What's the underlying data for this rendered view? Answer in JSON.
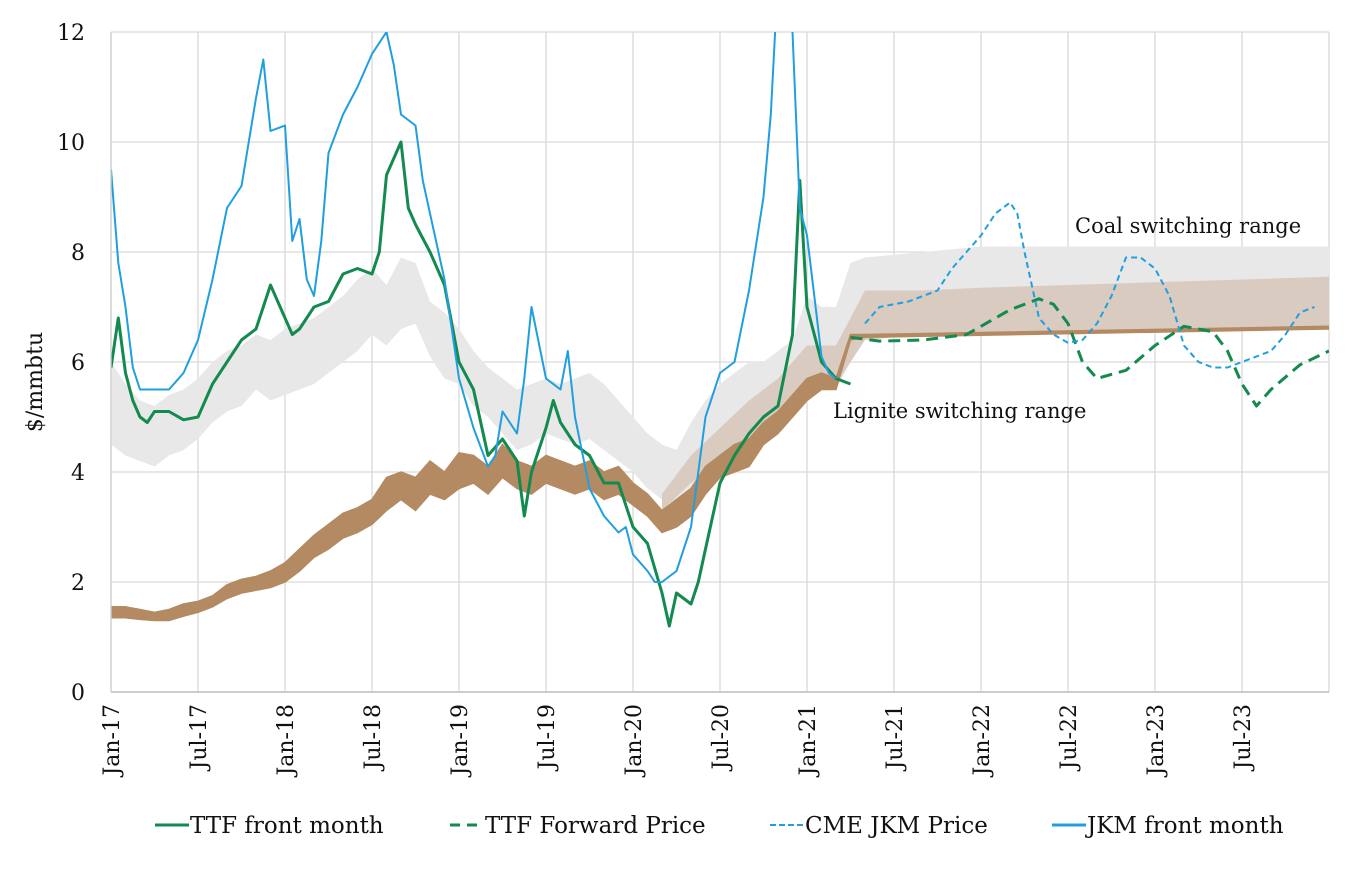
{
  "chart_data": {
    "type": "line",
    "title": "",
    "xlabel": "",
    "ylabel": "$/mmbtu",
    "ylim": [
      0,
      12
    ],
    "yticks": [
      "0",
      "2",
      "4",
      "6",
      "8",
      "10",
      "12"
    ],
    "xlim": [
      "Jan-17",
      "Dec-23"
    ],
    "xticks": [
      "Jan-17",
      "Jul-17",
      "Jan-18",
      "Jul-18",
      "Jan-19",
      "Jul-19",
      "Jan-20",
      "Jul-20",
      "Jan-21",
      "Jul-21",
      "Jan-22",
      "Jul-22",
      "Jan-23",
      "Jul-23"
    ],
    "grid": true,
    "legend_position": "bottom",
    "x_unit": "months since Jan-17",
    "annotations": [
      {
        "text": "Coal switching range",
        "x": 68,
        "y": 8.5
      },
      {
        "text": "Lignite switching range",
        "x": 50.5,
        "y": 5.0
      }
    ],
    "bands": [
      {
        "name": "Coal switching range",
        "color": "#e8e8e8",
        "x": [
          0,
          1,
          2,
          3,
          4,
          5,
          6,
          7,
          8,
          9,
          10,
          11,
          12,
          13,
          14,
          15,
          16,
          17,
          18,
          19,
          20,
          21,
          22,
          23,
          24,
          25,
          26,
          27,
          28,
          29,
          30,
          31,
          32,
          33,
          34,
          35,
          36,
          37,
          38,
          39,
          40,
          41,
          42,
          43,
          44,
          45,
          46,
          47,
          48,
          49,
          50,
          51,
          52,
          56,
          60,
          66,
          72,
          78,
          84
        ],
        "low": [
          4.5,
          4.3,
          4.2,
          4.1,
          4.3,
          4.4,
          4.6,
          4.9,
          5.1,
          5.2,
          5.5,
          5.3,
          5.4,
          5.5,
          5.6,
          5.8,
          6.0,
          6.2,
          6.5,
          6.3,
          6.6,
          6.7,
          6.1,
          5.7,
          5.6,
          5.2,
          5.0,
          4.7,
          4.4,
          4.5,
          4.7,
          4.6,
          4.5,
          4.6,
          4.4,
          4.2,
          4.0,
          3.7,
          3.5,
          3.4,
          3.6,
          4.0,
          4.4,
          4.6,
          4.8,
          5.0,
          5.2,
          5.4,
          5.6,
          5.5,
          5.5,
          6.0,
          6.5,
          6.6,
          6.6,
          6.6,
          6.6,
          6.6,
          6.6
        ],
        "high": [
          6.0,
          5.6,
          5.3,
          5.2,
          5.4,
          5.5,
          5.7,
          6.0,
          6.2,
          6.3,
          6.5,
          6.4,
          6.6,
          6.7,
          6.8,
          7.0,
          7.2,
          7.5,
          7.7,
          7.4,
          7.9,
          7.8,
          7.1,
          6.9,
          6.6,
          6.2,
          5.9,
          5.7,
          5.5,
          5.6,
          5.7,
          5.6,
          5.7,
          5.8,
          5.6,
          5.3,
          5.0,
          4.7,
          4.5,
          4.4,
          4.9,
          5.3,
          5.6,
          5.8,
          6.0,
          6.0,
          6.2,
          6.4,
          7.2,
          7.0,
          7.0,
          7.8,
          7.9,
          8.0,
          8.1,
          8.1,
          8.1,
          8.1,
          8.1
        ]
      },
      {
        "name": "Lignite switching range",
        "color": "#d9cbc0",
        "x": [
          38,
          40,
          42,
          44,
          46,
          48,
          49,
          50,
          51,
          52,
          56,
          60,
          66,
          72,
          78,
          84
        ],
        "low": [
          3.3,
          3.8,
          4.2,
          4.5,
          4.8,
          5.3,
          5.6,
          5.6,
          6.0,
          6.4,
          6.5,
          6.5,
          6.5,
          6.55,
          6.6,
          6.6
        ],
        "high": [
          3.6,
          4.3,
          4.8,
          5.3,
          5.7,
          6.3,
          6.3,
          6.3,
          6.8,
          7.3,
          7.3,
          7.35,
          7.4,
          7.45,
          7.5,
          7.55
        ]
      }
    ],
    "series": [
      {
        "name": "Lignite switching cost",
        "legend": false,
        "color": "#b38a62",
        "style": "band-line",
        "x": [
          0,
          1,
          2,
          3,
          4,
          5,
          6,
          7,
          8,
          9,
          10,
          11,
          12,
          13,
          14,
          15,
          16,
          17,
          18,
          19,
          20,
          21,
          22,
          23,
          24,
          25,
          26,
          27,
          28,
          29,
          30,
          31,
          32,
          33,
          34,
          35,
          36,
          37,
          38,
          39,
          40,
          41,
          42,
          43,
          44,
          45,
          46,
          47,
          48,
          49,
          50,
          51,
          52,
          84
        ],
        "low": [
          1.35,
          1.35,
          1.32,
          1.3,
          1.3,
          1.38,
          1.45,
          1.55,
          1.7,
          1.8,
          1.85,
          1.9,
          2.0,
          2.2,
          2.45,
          2.6,
          2.8,
          2.9,
          3.05,
          3.3,
          3.5,
          3.3,
          3.6,
          3.5,
          3.7,
          3.8,
          3.6,
          3.9,
          3.7,
          3.6,
          3.8,
          3.7,
          3.6,
          3.7,
          3.5,
          3.6,
          3.4,
          3.2,
          2.9,
          3.0,
          3.2,
          3.6,
          3.9,
          4.0,
          4.1,
          4.5,
          4.7,
          5.0,
          5.3,
          5.5,
          5.5,
          6.4,
          6.45,
          6.6
        ],
        "high": [
          1.55,
          1.55,
          1.5,
          1.45,
          1.5,
          1.6,
          1.65,
          1.75,
          1.95,
          2.05,
          2.1,
          2.2,
          2.35,
          2.6,
          2.85,
          3.05,
          3.25,
          3.35,
          3.5,
          3.9,
          4.0,
          3.9,
          4.2,
          4.0,
          4.35,
          4.3,
          4.1,
          4.5,
          4.2,
          4.1,
          4.3,
          4.2,
          4.1,
          4.2,
          4.0,
          4.1,
          3.8,
          3.6,
          3.3,
          3.5,
          3.7,
          4.1,
          4.3,
          4.5,
          4.6,
          4.9,
          5.1,
          5.4,
          5.7,
          5.8,
          5.7,
          6.5,
          6.5,
          6.65
        ]
      },
      {
        "name": "TTF front month",
        "color": "#138a4f",
        "dash": "solid",
        "width": 3,
        "x": [
          0,
          0.5,
          1,
          1.5,
          2,
          2.5,
          3,
          4,
          5,
          6,
          7,
          8,
          9,
          10,
          11,
          12,
          12.5,
          13,
          14,
          15,
          16,
          17,
          18,
          18.5,
          19,
          20,
          20.5,
          21,
          22,
          23,
          24,
          25,
          26,
          27,
          28,
          28.5,
          29,
          30,
          30.5,
          31,
          32,
          33,
          34,
          35,
          36,
          37,
          38,
          38.5,
          39,
          40,
          40.5,
          41,
          42,
          43,
          44,
          45,
          46,
          47,
          47.5,
          48,
          48.5,
          49,
          50,
          51
        ],
        "values": [
          5.9,
          6.8,
          5.8,
          5.3,
          5.0,
          4.9,
          5.1,
          5.1,
          4.95,
          5.0,
          5.6,
          6.0,
          6.4,
          6.6,
          7.4,
          6.8,
          6.5,
          6.6,
          7.0,
          7.1,
          7.6,
          7.7,
          7.6,
          8.0,
          9.4,
          10.0,
          8.8,
          8.5,
          8.0,
          7.4,
          6.0,
          5.5,
          4.3,
          4.6,
          4.2,
          3.2,
          4.0,
          4.8,
          5.3,
          4.9,
          4.5,
          4.3,
          3.8,
          3.8,
          3.0,
          2.7,
          1.8,
          1.2,
          1.8,
          1.6,
          2.0,
          2.6,
          3.8,
          4.3,
          4.7,
          5.0,
          5.2,
          6.5,
          9.3,
          7.0,
          6.5,
          6.0,
          5.7,
          5.6
        ]
      },
      {
        "name": "JKM front month",
        "color": "#1f9fe0",
        "dash": "solid",
        "width": 2,
        "x": [
          0,
          0.5,
          1,
          1.5,
          2,
          3,
          4,
          5,
          6,
          7,
          8,
          9,
          10,
          10.5,
          11,
          12,
          12.5,
          13,
          13.5,
          14,
          14.5,
          15,
          16,
          17,
          18,
          19,
          19.5,
          20,
          21,
          21.5,
          22,
          23,
          24,
          25,
          26,
          26.5,
          27,
          28,
          28.5,
          29,
          30,
          31,
          31.5,
          32,
          33,
          34,
          35,
          35.5,
          36,
          37,
          37.5,
          38,
          39,
          40,
          40.5,
          41,
          42,
          43,
          44,
          45,
          45.5,
          46,
          47,
          47.5,
          48,
          48.5,
          49,
          49.5,
          50
        ],
        "values": [
          9.5,
          7.8,
          7.0,
          5.9,
          5.5,
          5.5,
          5.5,
          5.8,
          6.4,
          7.5,
          8.8,
          9.2,
          10.8,
          11.5,
          10.2,
          10.3,
          8.2,
          8.6,
          7.5,
          7.2,
          8.2,
          9.8,
          10.5,
          11.0,
          11.6,
          12.0,
          11.4,
          10.5,
          10.3,
          9.3,
          8.7,
          7.5,
          5.7,
          4.8,
          4.1,
          4.3,
          5.1,
          4.7,
          5.7,
          7.0,
          5.7,
          5.5,
          6.2,
          5.0,
          3.7,
          3.2,
          2.9,
          3.0,
          2.5,
          2.2,
          2.0,
          2.0,
          2.2,
          3.0,
          4.0,
          5.0,
          5.8,
          6.0,
          7.3,
          9.0,
          10.5,
          13.0,
          12.0,
          8.8,
          8.3,
          7.2,
          6.1,
          5.8,
          5.7
        ]
      },
      {
        "name": "TTF Forward Price",
        "color": "#138a4f",
        "dash": "dashed",
        "width": 3,
        "x": [
          51,
          53,
          56,
          59,
          62,
          64,
          65,
          66,
          67,
          68,
          70,
          72,
          74,
          76,
          77,
          78,
          79,
          80,
          82,
          84
        ],
        "values": [
          6.45,
          6.38,
          6.4,
          6.5,
          6.95,
          7.15,
          7.05,
          6.7,
          6.0,
          5.7,
          5.85,
          6.3,
          6.65,
          6.55,
          6.2,
          5.6,
          5.2,
          5.5,
          5.95,
          6.2
        ]
      },
      {
        "name": "CME JKM Price",
        "color": "#1f9fe0",
        "dash": "dotted",
        "width": 2,
        "x": [
          52,
          53,
          55,
          57,
          58,
          60,
          61,
          62,
          62.5,
          63,
          64,
          65,
          66,
          67,
          68,
          69,
          70,
          71,
          72,
          73,
          74,
          75,
          76,
          77,
          78,
          79,
          80,
          81,
          82,
          83
        ],
        "values": [
          6.7,
          7.0,
          7.1,
          7.3,
          7.7,
          8.3,
          8.7,
          8.9,
          8.7,
          8.0,
          6.8,
          6.5,
          6.35,
          6.4,
          6.7,
          7.2,
          7.9,
          7.9,
          7.7,
          7.2,
          6.3,
          6.0,
          5.9,
          5.9,
          6.0,
          6.1,
          6.2,
          6.5,
          6.9,
          7.0
        ]
      }
    ],
    "legend": [
      {
        "label": "TTF front month",
        "color": "#138a4f",
        "dash": "solid"
      },
      {
        "label": "TTF Forward Price",
        "color": "#138a4f",
        "dash": "dashed"
      },
      {
        "label": "CME JKM Price",
        "color": "#1f9fe0",
        "dash": "dotted"
      },
      {
        "label": "JKM front month",
        "color": "#1f9fe0",
        "dash": "solid"
      }
    ]
  }
}
